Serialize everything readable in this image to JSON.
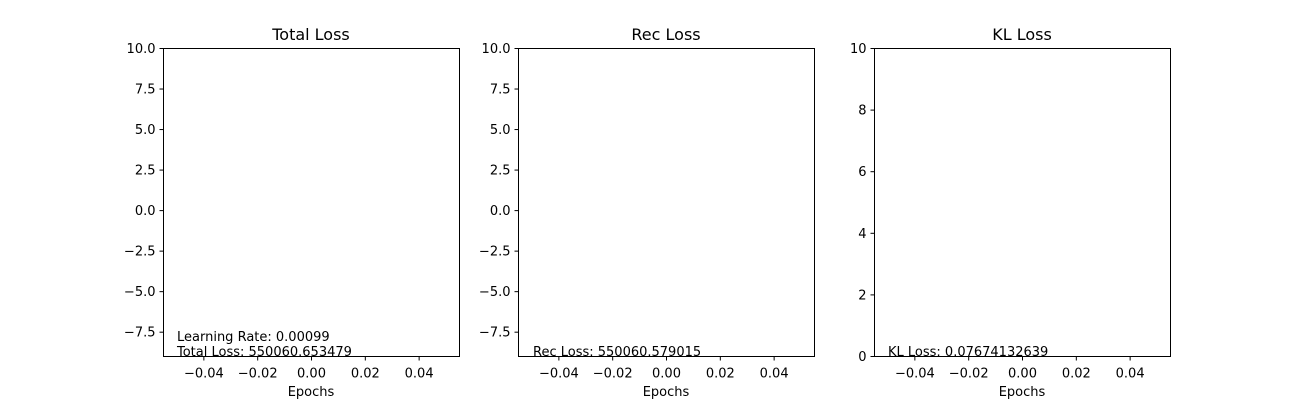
{
  "chart_data": [
    {
      "type": "line",
      "title": "Total Loss",
      "xlabel": "Epochs",
      "ylabel": "",
      "xlim": [
        -0.055,
        0.055
      ],
      "ylim": [
        -9.0,
        10.0
      ],
      "xticks": [
        -0.04,
        -0.02,
        0.0,
        0.02,
        0.04
      ],
      "xtick_labels": [
        "−0.04",
        "−0.02",
        "0.00",
        "0.02",
        "0.04"
      ],
      "yticks": [
        10.0,
        7.5,
        5.0,
        2.5,
        0.0,
        -2.5,
        -5.0,
        -7.5
      ],
      "ytick_labels": [
        "10.0",
        "7.5",
        "5.0",
        "2.5",
        "0.0",
        "−2.5",
        "−5.0",
        "−7.5"
      ],
      "series": [],
      "annotations": [
        "Learning Rate: 0.00099",
        "Total Loss: 550060.653479"
      ]
    },
    {
      "type": "line",
      "title": "Rec Loss",
      "xlabel": "Epochs",
      "ylabel": "",
      "xlim": [
        -0.055,
        0.055
      ],
      "ylim": [
        -9.0,
        10.0
      ],
      "xticks": [
        -0.04,
        -0.02,
        0.0,
        0.02,
        0.04
      ],
      "xtick_labels": [
        "−0.04",
        "−0.02",
        "0.00",
        "0.02",
        "0.04"
      ],
      "yticks": [
        10.0,
        7.5,
        5.0,
        2.5,
        0.0,
        -2.5,
        -5.0,
        -7.5
      ],
      "ytick_labels": [
        "10.0",
        "7.5",
        "5.0",
        "2.5",
        "0.0",
        "−2.5",
        "−5.0",
        "−7.5"
      ],
      "series": [],
      "annotations": [
        "Rec Loss: 550060.579015"
      ]
    },
    {
      "type": "line",
      "title": "KL Loss",
      "xlabel": "Epochs",
      "ylabel": "",
      "xlim": [
        -0.055,
        0.055
      ],
      "ylim": [
        0,
        10
      ],
      "xticks": [
        -0.04,
        -0.02,
        0.0,
        0.02,
        0.04
      ],
      "xtick_labels": [
        "−0.04",
        "−0.02",
        "0.00",
        "0.02",
        "0.04"
      ],
      "yticks": [
        10,
        8,
        6,
        4,
        2,
        0
      ],
      "ytick_labels": [
        "10",
        "8",
        "6",
        "4",
        "2",
        "0"
      ],
      "series": [],
      "annotations": [
        "KL Loss: 0.07674132639"
      ]
    }
  ]
}
